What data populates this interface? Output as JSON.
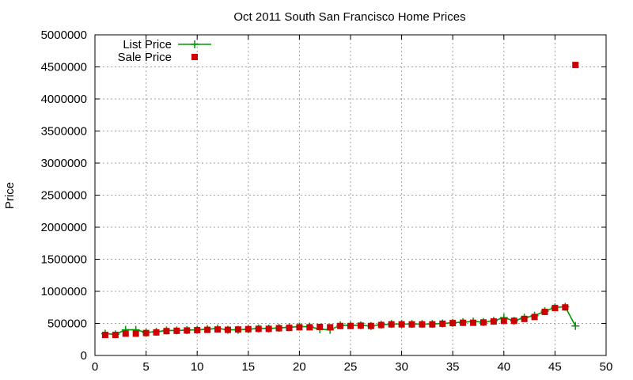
{
  "chart_data": {
    "type": "line",
    "title": "Oct 2011 South San Francisco Home Prices",
    "xlabel": "",
    "ylabel": "Price",
    "xlim": [
      0,
      50
    ],
    "ylim": [
      0,
      5000000
    ],
    "xticks": [
      0,
      5,
      10,
      15,
      20,
      25,
      30,
      35,
      40,
      45,
      50
    ],
    "yticks": [
      0,
      500000,
      1000000,
      1500000,
      2000000,
      2500000,
      3000000,
      3500000,
      4000000,
      4500000,
      5000000
    ],
    "grid": true,
    "legend_position": "top-left",
    "series": [
      {
        "name": "List Price",
        "style": "line-plus",
        "color": "#009900",
        "points": [
          [
            1,
            340000
          ],
          [
            2,
            330000
          ],
          [
            3,
            400000
          ],
          [
            4,
            400000
          ],
          [
            5,
            360000
          ],
          [
            6,
            370000
          ],
          [
            7,
            390000
          ],
          [
            8,
            390000
          ],
          [
            9,
            395000
          ],
          [
            10,
            400000
          ],
          [
            11,
            410000
          ],
          [
            12,
            420000
          ],
          [
            13,
            400000
          ],
          [
            14,
            400000
          ],
          [
            15,
            410000
          ],
          [
            16,
            420000
          ],
          [
            17,
            420000
          ],
          [
            18,
            430000
          ],
          [
            19,
            440000
          ],
          [
            20,
            450000
          ],
          [
            21,
            450000
          ],
          [
            22,
            410000
          ],
          [
            23,
            400000
          ],
          [
            24,
            470000
          ],
          [
            25,
            470000
          ],
          [
            26,
            470000
          ],
          [
            27,
            460000
          ],
          [
            28,
            480000
          ],
          [
            29,
            490000
          ],
          [
            30,
            490000
          ],
          [
            31,
            490000
          ],
          [
            32,
            490000
          ],
          [
            33,
            490000
          ],
          [
            34,
            500000
          ],
          [
            35,
            510000
          ],
          [
            36,
            520000
          ],
          [
            37,
            530000
          ],
          [
            38,
            520000
          ],
          [
            39,
            540000
          ],
          [
            40,
            590000
          ],
          [
            41,
            540000
          ],
          [
            42,
            590000
          ],
          [
            43,
            620000
          ],
          [
            44,
            690000
          ],
          [
            45,
            750000
          ],
          [
            46,
            760000
          ],
          [
            47,
            460000
          ]
        ]
      },
      {
        "name": "Sale Price",
        "style": "square",
        "color": "#cc0000",
        "points": [
          [
            1,
            320000
          ],
          [
            2,
            320000
          ],
          [
            3,
            340000
          ],
          [
            4,
            340000
          ],
          [
            5,
            350000
          ],
          [
            6,
            360000
          ],
          [
            7,
            380000
          ],
          [
            8,
            385000
          ],
          [
            9,
            390000
          ],
          [
            10,
            395000
          ],
          [
            11,
            400000
          ],
          [
            12,
            405000
          ],
          [
            13,
            400000
          ],
          [
            14,
            405000
          ],
          [
            15,
            410000
          ],
          [
            16,
            415000
          ],
          [
            17,
            415000
          ],
          [
            18,
            425000
          ],
          [
            19,
            430000
          ],
          [
            20,
            440000
          ],
          [
            21,
            440000
          ],
          [
            22,
            445000
          ],
          [
            23,
            440000
          ],
          [
            24,
            460000
          ],
          [
            25,
            460000
          ],
          [
            26,
            465000
          ],
          [
            27,
            460000
          ],
          [
            28,
            475000
          ],
          [
            29,
            485000
          ],
          [
            30,
            485000
          ],
          [
            31,
            485000
          ],
          [
            32,
            485000
          ],
          [
            33,
            485000
          ],
          [
            34,
            495000
          ],
          [
            35,
            505000
          ],
          [
            36,
            510000
          ],
          [
            37,
            510000
          ],
          [
            38,
            515000
          ],
          [
            39,
            530000
          ],
          [
            40,
            540000
          ],
          [
            41,
            540000
          ],
          [
            42,
            570000
          ],
          [
            43,
            600000
          ],
          [
            44,
            680000
          ],
          [
            45,
            740000
          ],
          [
            46,
            750000
          ],
          [
            47,
            4530000
          ]
        ]
      }
    ]
  }
}
